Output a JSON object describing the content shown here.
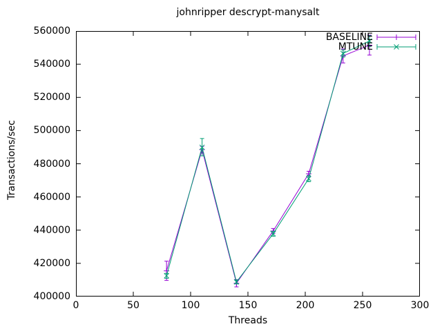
{
  "title": "johnripper descrypt-manysalt",
  "axes": {
    "x_label": "Threads",
    "y_label": "Transactions/sec"
  },
  "colors": {
    "baseline": "#9400d3",
    "mtune": "#009e73",
    "axis": "#000000",
    "background": "#ffffff",
    "text": "#000000"
  },
  "legend": {
    "position": "top-right-inside",
    "items": [
      "BASELINE",
      "MTUNE"
    ]
  },
  "chart_data": {
    "type": "line",
    "title": "johnripper descrypt-manysalt",
    "xlabel": "Threads",
    "ylabel": "Transactions/sec",
    "xlim": [
      0,
      300
    ],
    "ylim": [
      400000,
      560000
    ],
    "xticks": [
      0,
      50,
      100,
      150,
      200,
      250,
      300
    ],
    "yticks": [
      400000,
      420000,
      440000,
      460000,
      480000,
      500000,
      520000,
      540000,
      560000
    ],
    "grid": false,
    "legend_position": "top-right-inside",
    "style": "linespoints with yerrorbars",
    "series": [
      {
        "name": "BASELINE",
        "color": "#9400d3",
        "marker": "plus",
        "x": [
          79,
          110,
          140,
          172,
          203,
          233,
          256
        ],
        "y": [
          415500,
          488500,
          408000,
          439500,
          474000,
          545000,
          551500
        ],
        "yerr": [
          5800,
          2000,
          2200,
          1500,
          1500,
          4200,
          6000
        ]
      },
      {
        "name": "MTUNE",
        "color": "#009e73",
        "marker": "cross",
        "x": [
          79,
          110,
          140,
          172,
          203,
          233,
          256
        ],
        "y": [
          412500,
          490000,
          408800,
          437800,
          471000,
          546500,
          554000
        ],
        "yerr": [
          1500,
          5200,
          1200,
          1500,
          1800,
          2200,
          3200
        ]
      }
    ]
  }
}
